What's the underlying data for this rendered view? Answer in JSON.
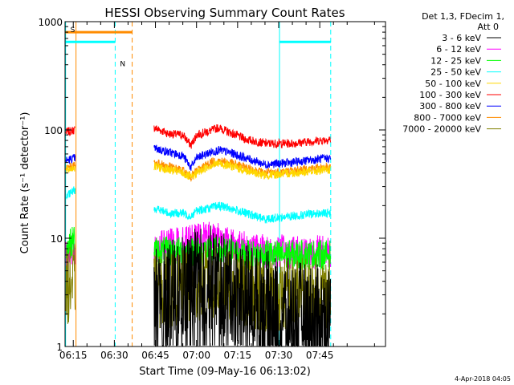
{
  "chart_data": {
    "type": "line",
    "title": "HESSI Observing Summary Count Rates",
    "xlabel": "Start Time (09-May-16 06:13:02)",
    "ylabel": "Count Rate (s⁻¹ detector⁻¹)",
    "yscale": "log",
    "ylim": [
      1,
      1000
    ],
    "xlim_minutes": [
      372,
      489
    ],
    "x_ticks": [
      {
        "minute": 375,
        "label": "06:15"
      },
      {
        "minute": 390,
        "label": "06:30"
      },
      {
        "minute": 405,
        "label": "06:45"
      },
      {
        "minute": 420,
        "label": "07:00"
      },
      {
        "minute": 435,
        "label": "07:15"
      },
      {
        "minute": 450,
        "label": "07:30"
      },
      {
        "minute": 465,
        "label": "07:45"
      }
    ],
    "y_ticks": [
      {
        "value": 1,
        "label": "1"
      },
      {
        "value": 10,
        "label": "10"
      },
      {
        "value": 100,
        "label": "100"
      },
      {
        "value": 1000,
        "label": "1000"
      }
    ],
    "legend": {
      "placement": "right",
      "header": [
        "Det 1,3, FDecim 1,",
        "Att 0"
      ],
      "entries": [
        {
          "label": "3 - 6 keV",
          "color": "#000000"
        },
        {
          "label": "6 - 12 keV",
          "color": "#ff00ff"
        },
        {
          "label": "12 - 25 keV",
          "color": "#00ff00"
        },
        {
          "label": "25 - 50 keV",
          "color": "#00ffff"
        },
        {
          "label": "50 - 100 keV",
          "color": "#ffd700"
        },
        {
          "label": "100 - 300 keV",
          "color": "#ff0000"
        },
        {
          "label": "300 - 800 keV",
          "color": "#0000ff"
        },
        {
          "label": "800 - 7000 keV",
          "color": "#ff8c00"
        },
        {
          "label": "7000 - 20000 keV",
          "color": "#808000"
        }
      ]
    },
    "segments": [
      [
        372.2,
        375.8
      ],
      [
        404.3,
        469.0
      ]
    ],
    "series": [
      {
        "name": "100 - 300 keV",
        "color": "#ff0000",
        "values": [
          [
            372.3,
            95
          ],
          [
            375.5,
            100
          ],
          [
            404.5,
            105
          ],
          [
            410,
            92
          ],
          [
            415,
            90
          ],
          [
            418,
            72
          ],
          [
            420,
            90
          ],
          [
            425,
            98
          ],
          [
            428,
            105
          ],
          [
            432,
            95
          ],
          [
            438,
            82
          ],
          [
            445,
            75
          ],
          [
            455,
            75
          ],
          [
            465,
            80
          ],
          [
            469,
            82
          ]
        ]
      },
      {
        "name": "300 - 800 keV",
        "color": "#0000ff",
        "values": [
          [
            372.3,
            52
          ],
          [
            375.5,
            55
          ],
          [
            404.5,
            68
          ],
          [
            410,
            62
          ],
          [
            415,
            58
          ],
          [
            418,
            45
          ],
          [
            420,
            55
          ],
          [
            425,
            62
          ],
          [
            428,
            65
          ],
          [
            432,
            62
          ],
          [
            438,
            55
          ],
          [
            445,
            48
          ],
          [
            455,
            50
          ],
          [
            465,
            54
          ],
          [
            469,
            55
          ]
        ]
      },
      {
        "name": "800 - 7000 keV",
        "color": "#ff8c00",
        "values": [
          [
            372.3,
            44
          ],
          [
            375.5,
            47
          ],
          [
            404.5,
            50
          ],
          [
            410,
            46
          ],
          [
            415,
            42
          ],
          [
            418,
            37
          ],
          [
            420,
            42
          ],
          [
            425,
            50
          ],
          [
            428,
            52
          ],
          [
            432,
            50
          ],
          [
            438,
            45
          ],
          [
            445,
            40
          ],
          [
            455,
            42
          ],
          [
            465,
            45
          ],
          [
            469,
            46
          ]
        ]
      },
      {
        "name": "50 - 100 keV",
        "color": "#ffd700",
        "values": [
          [
            372.3,
            42
          ],
          [
            375.5,
            45
          ],
          [
            404.5,
            46
          ],
          [
            410,
            43
          ],
          [
            415,
            40
          ],
          [
            418,
            36
          ],
          [
            420,
            40
          ],
          [
            425,
            47
          ],
          [
            428,
            49
          ],
          [
            432,
            47
          ],
          [
            438,
            42
          ],
          [
            445,
            38
          ],
          [
            455,
            40
          ],
          [
            465,
            42
          ],
          [
            469,
            43
          ]
        ]
      },
      {
        "name": "25 - 50 keV",
        "color": "#00ffff",
        "values": [
          [
            372.3,
            24
          ],
          [
            375.5,
            28
          ],
          [
            404.5,
            19
          ],
          [
            410,
            17
          ],
          [
            415,
            17
          ],
          [
            418,
            16
          ],
          [
            420,
            18
          ],
          [
            425,
            19
          ],
          [
            428,
            20
          ],
          [
            432,
            19
          ],
          [
            438,
            17
          ],
          [
            445,
            15
          ],
          [
            455,
            16
          ],
          [
            465,
            17
          ],
          [
            469,
            17
          ]
        ]
      },
      {
        "name": "6 - 12 keV",
        "color": "#ff00ff",
        "values": [
          [
            372.3,
            7
          ],
          [
            375.5,
            8
          ],
          [
            404.5,
            8
          ],
          [
            410,
            8.5
          ],
          [
            415,
            9
          ],
          [
            418,
            9.5
          ],
          [
            420,
            9.5
          ],
          [
            425,
            10
          ],
          [
            428,
            10
          ],
          [
            432,
            9
          ],
          [
            438,
            8
          ],
          [
            445,
            7.5
          ],
          [
            455,
            7.5
          ],
          [
            465,
            7.5
          ],
          [
            469,
            7.5
          ]
        ]
      },
      {
        "name": "12 - 25 keV",
        "color": "#00ff00",
        "values": [
          [
            372.3,
            8
          ],
          [
            375.5,
            10
          ],
          [
            404.5,
            7.5
          ],
          [
            410,
            7.5
          ],
          [
            415,
            7.5
          ],
          [
            418,
            7.5
          ],
          [
            420,
            7.5
          ],
          [
            425,
            7.5
          ],
          [
            428,
            7.5
          ],
          [
            432,
            7.5
          ],
          [
            438,
            7
          ],
          [
            445,
            7
          ],
          [
            455,
            7
          ],
          [
            465,
            7
          ],
          [
            469,
            7
          ]
        ]
      },
      {
        "name": "7000 - 20000 keV",
        "color": "#808000",
        "values": [
          [
            372.3,
            3.5
          ],
          [
            375.5,
            4
          ],
          [
            404.5,
            3.2
          ],
          [
            410,
            3.3
          ],
          [
            415,
            3.5
          ],
          [
            418,
            3.5
          ],
          [
            420,
            3.8
          ],
          [
            425,
            4
          ],
          [
            428,
            3.8
          ],
          [
            432,
            3.5
          ],
          [
            438,
            3.2
          ],
          [
            445,
            3
          ],
          [
            455,
            3
          ],
          [
            465,
            3
          ],
          [
            469,
            3.2
          ]
        ]
      },
      {
        "name": "3 - 6 keV",
        "color": "#000000",
        "values": [
          [
            404.5,
            2.5
          ],
          [
            410,
            3
          ],
          [
            415,
            3.5
          ],
          [
            418,
            3.8
          ],
          [
            420,
            4
          ],
          [
            425,
            4.2
          ],
          [
            428,
            4
          ],
          [
            432,
            3.5
          ],
          [
            438,
            3
          ],
          [
            445,
            2.5
          ],
          [
            455,
            2
          ],
          [
            465,
            1.8
          ],
          [
            469,
            1.8
          ]
        ]
      }
    ],
    "flags": [
      {
        "label": "S",
        "color": "#ff8c00",
        "value": 800,
        "start": 372.2,
        "end": 396.5
      },
      {
        "label": "N",
        "color": "#00ffff",
        "value": 650,
        "start": 372.2,
        "end": 390.3
      },
      {
        "label": "",
        "color": "#00ffff",
        "value": 650,
        "start": 450.3,
        "end": 469.0
      }
    ],
    "markers": [
      {
        "minute": 372.2,
        "color": "#00ffff",
        "style": "solid"
      },
      {
        "minute": 376.0,
        "color": "#ff8c00",
        "style": "solid"
      },
      {
        "minute": 390.3,
        "color": "#00ffff",
        "style": "dashed"
      },
      {
        "minute": 396.5,
        "color": "#ff8c00",
        "style": "dashed"
      },
      {
        "minute": 450.3,
        "color": "#00ffff",
        "style": "solid"
      },
      {
        "minute": 469.0,
        "color": "#00ffff",
        "style": "dashed"
      }
    ]
  },
  "footer": {
    "timestamp": "4-Apr-2018 04:05"
  }
}
